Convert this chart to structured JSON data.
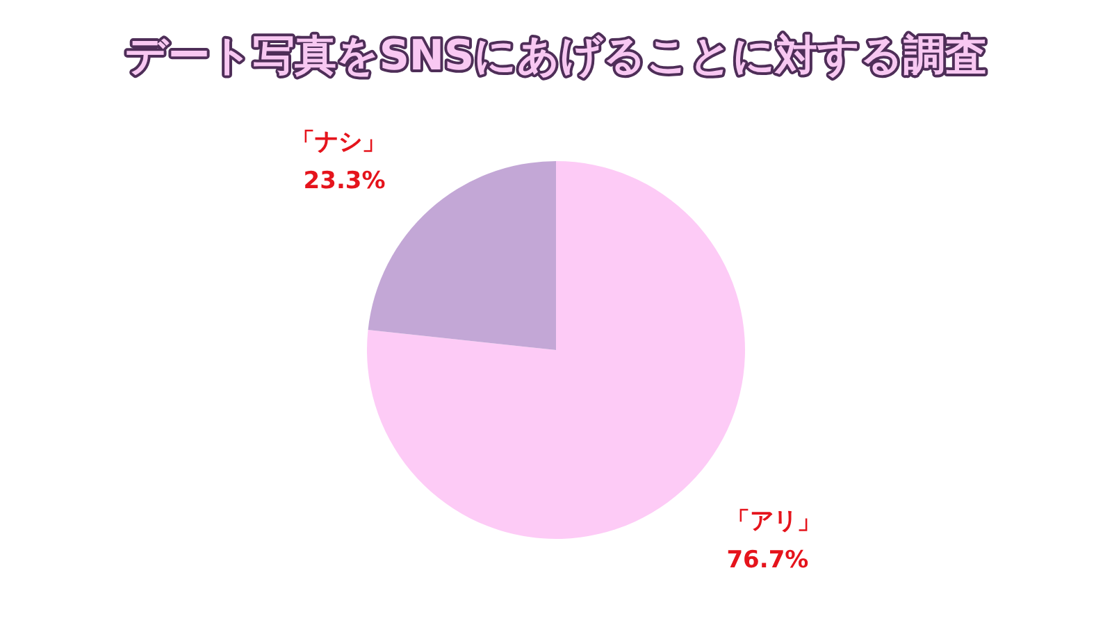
{
  "chart_data": {
    "type": "pie",
    "title": "デート写真をSNSにあげることに対する調査",
    "categories": [
      "「アリ」",
      "「ナシ」"
    ],
    "values": [
      76.7,
      23.3
    ],
    "colors": [
      "#fdcbf6",
      "#c3a7d6"
    ],
    "value_labels": [
      "76.7%",
      "23.3%"
    ]
  }
}
